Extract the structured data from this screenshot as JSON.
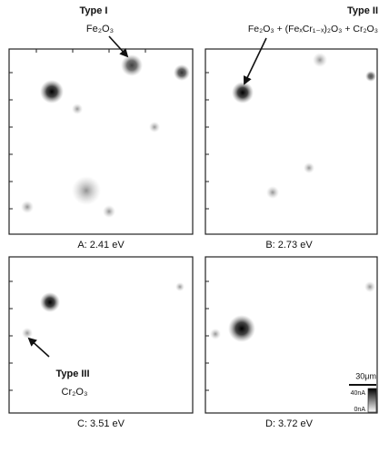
{
  "annotations": {
    "type_1": {
      "title": "Type I",
      "formula": "Fe₂O₃"
    },
    "type_2": {
      "title": "Type II",
      "formula": "Fe₂O₃ + (FeₓCr₁₋ₓ)₂O₃ + Cr₂O₃"
    },
    "type_3": {
      "title": "Type III",
      "formula": "Cr₂O₃"
    }
  },
  "panels": [
    {
      "caption": "A: 2.41 eV"
    },
    {
      "caption": "B: 2.73 eV"
    },
    {
      "caption": "C: 3.51 eV"
    },
    {
      "caption": "D: 3.72 eV"
    }
  ],
  "scale_bar": {
    "length": "30μm",
    "max_label": "40nA",
    "min_label": "0nA"
  }
}
